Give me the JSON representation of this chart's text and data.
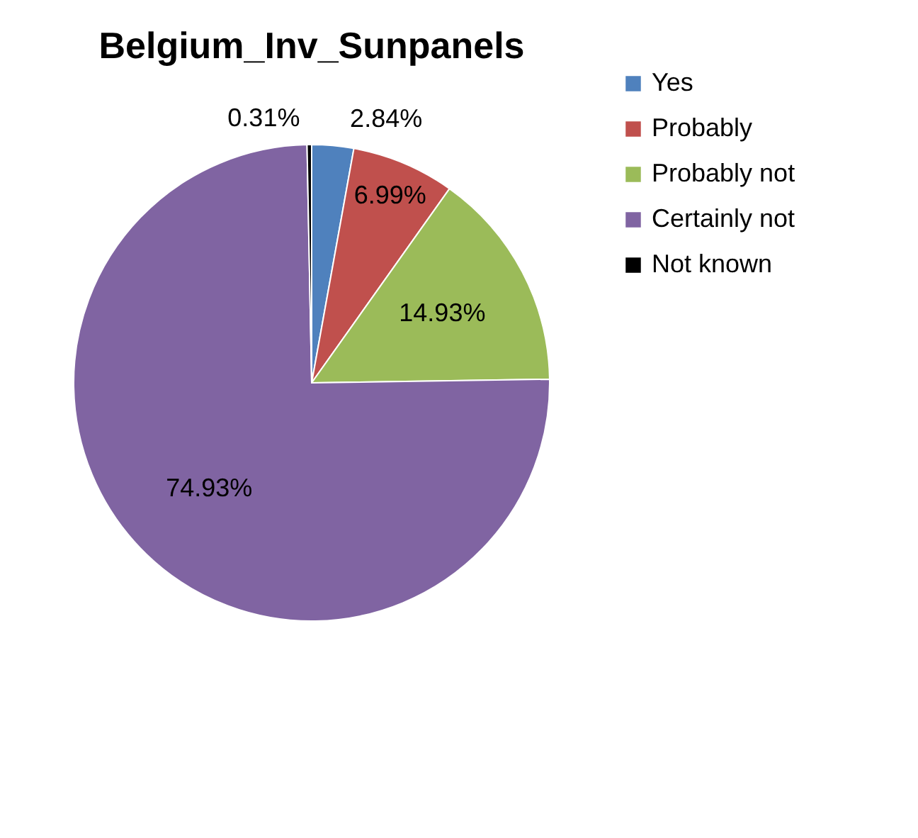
{
  "chart_data": {
    "type": "pie",
    "title": "Belgium_Inv_Sunpanels",
    "categories": [
      "Yes",
      "Probably",
      "Probably not",
      "Certainly not",
      "Not known"
    ],
    "values": [
      2.84,
      6.99,
      14.93,
      74.93,
      0.31
    ],
    "colors": [
      "#4f81bd",
      "#c0504d",
      "#9bbb59",
      "#8064a2",
      "#000000"
    ],
    "value_labels": [
      "2.84%",
      "6.99%",
      "14.93%",
      "74.93%",
      "0.31%"
    ],
    "legend": "right"
  }
}
